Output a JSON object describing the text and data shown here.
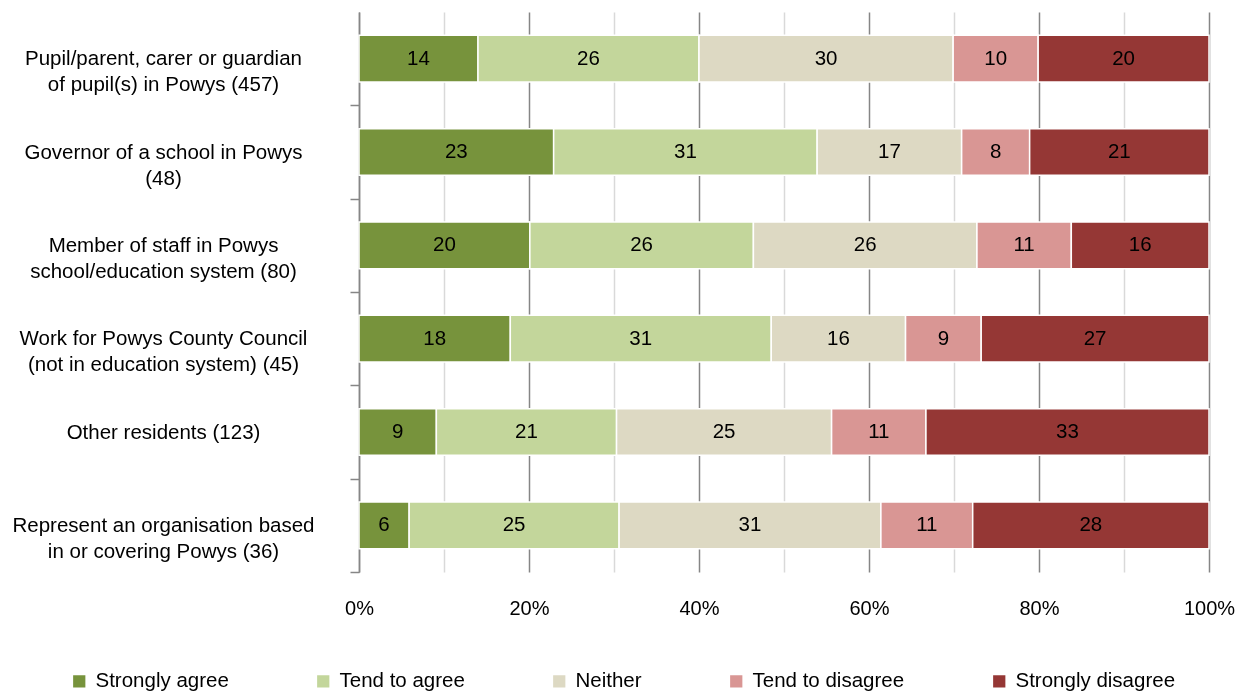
{
  "chart_data": {
    "type": "bar",
    "orientation": "horizontal",
    "stacked": true,
    "categories": [
      "Pupil/parent, carer or guardian of pupil(s) in Powys (457)",
      "Governor of a school in Powys (48)",
      "Member of staff in Powys school/education system (80)",
      "Work for Powys County Council (not in education system) (45)",
      "Other residents (123)",
      "Represent an organisation based in or covering Powys (36)"
    ],
    "series": [
      {
        "name": "Strongly agree",
        "color": "#77933c",
        "values": [
          14.0,
          22.9,
          20.1,
          17.8,
          9.1,
          5.9
        ],
        "value_labels": [
          "14",
          "23",
          "20",
          "18",
          "9",
          "6"
        ]
      },
      {
        "name": "Tend to agree",
        "color": "#c3d69b",
        "values": [
          26.0,
          31.0,
          26.3,
          30.7,
          21.2,
          24.7
        ],
        "value_labels": [
          "26",
          "31",
          "26",
          "31",
          "21",
          "25"
        ]
      },
      {
        "name": "Neither",
        "color": "#ddd9c3",
        "values": [
          29.9,
          17.0,
          26.3,
          15.8,
          25.3,
          30.8
        ],
        "value_labels": [
          "30",
          "17",
          "26",
          "16",
          "25",
          "31"
        ]
      },
      {
        "name": "Tend to disagree",
        "color": "#d99694",
        "values": [
          10.0,
          8.0,
          11.1,
          8.9,
          11.1,
          10.8
        ],
        "value_labels": [
          "10",
          "8",
          "11",
          "9",
          "11",
          "11"
        ]
      },
      {
        "name": "Strongly disagree",
        "color": "#953735",
        "values": [
          20.1,
          21.1,
          16.2,
          26.8,
          33.3,
          27.8
        ],
        "value_labels": [
          "20",
          "21",
          "16",
          "27",
          "33",
          "28"
        ]
      }
    ],
    "xlim": [
      0,
      100
    ],
    "xticks": [
      {
        "value": 0,
        "label": "0%"
      },
      {
        "value": 10,
        "label": null
      },
      {
        "value": 20,
        "label": "20%"
      },
      {
        "value": 30,
        "label": null
      },
      {
        "value": 40,
        "label": "40%"
      },
      {
        "value": 50,
        "label": null
      },
      {
        "value": 60,
        "label": "60%"
      },
      {
        "value": 70,
        "label": null
      },
      {
        "value": 80,
        "label": "80%"
      },
      {
        "value": 90,
        "label": null
      },
      {
        "value": 100,
        "label": "100%"
      }
    ],
    "grid": "x",
    "legend": "bottom"
  }
}
